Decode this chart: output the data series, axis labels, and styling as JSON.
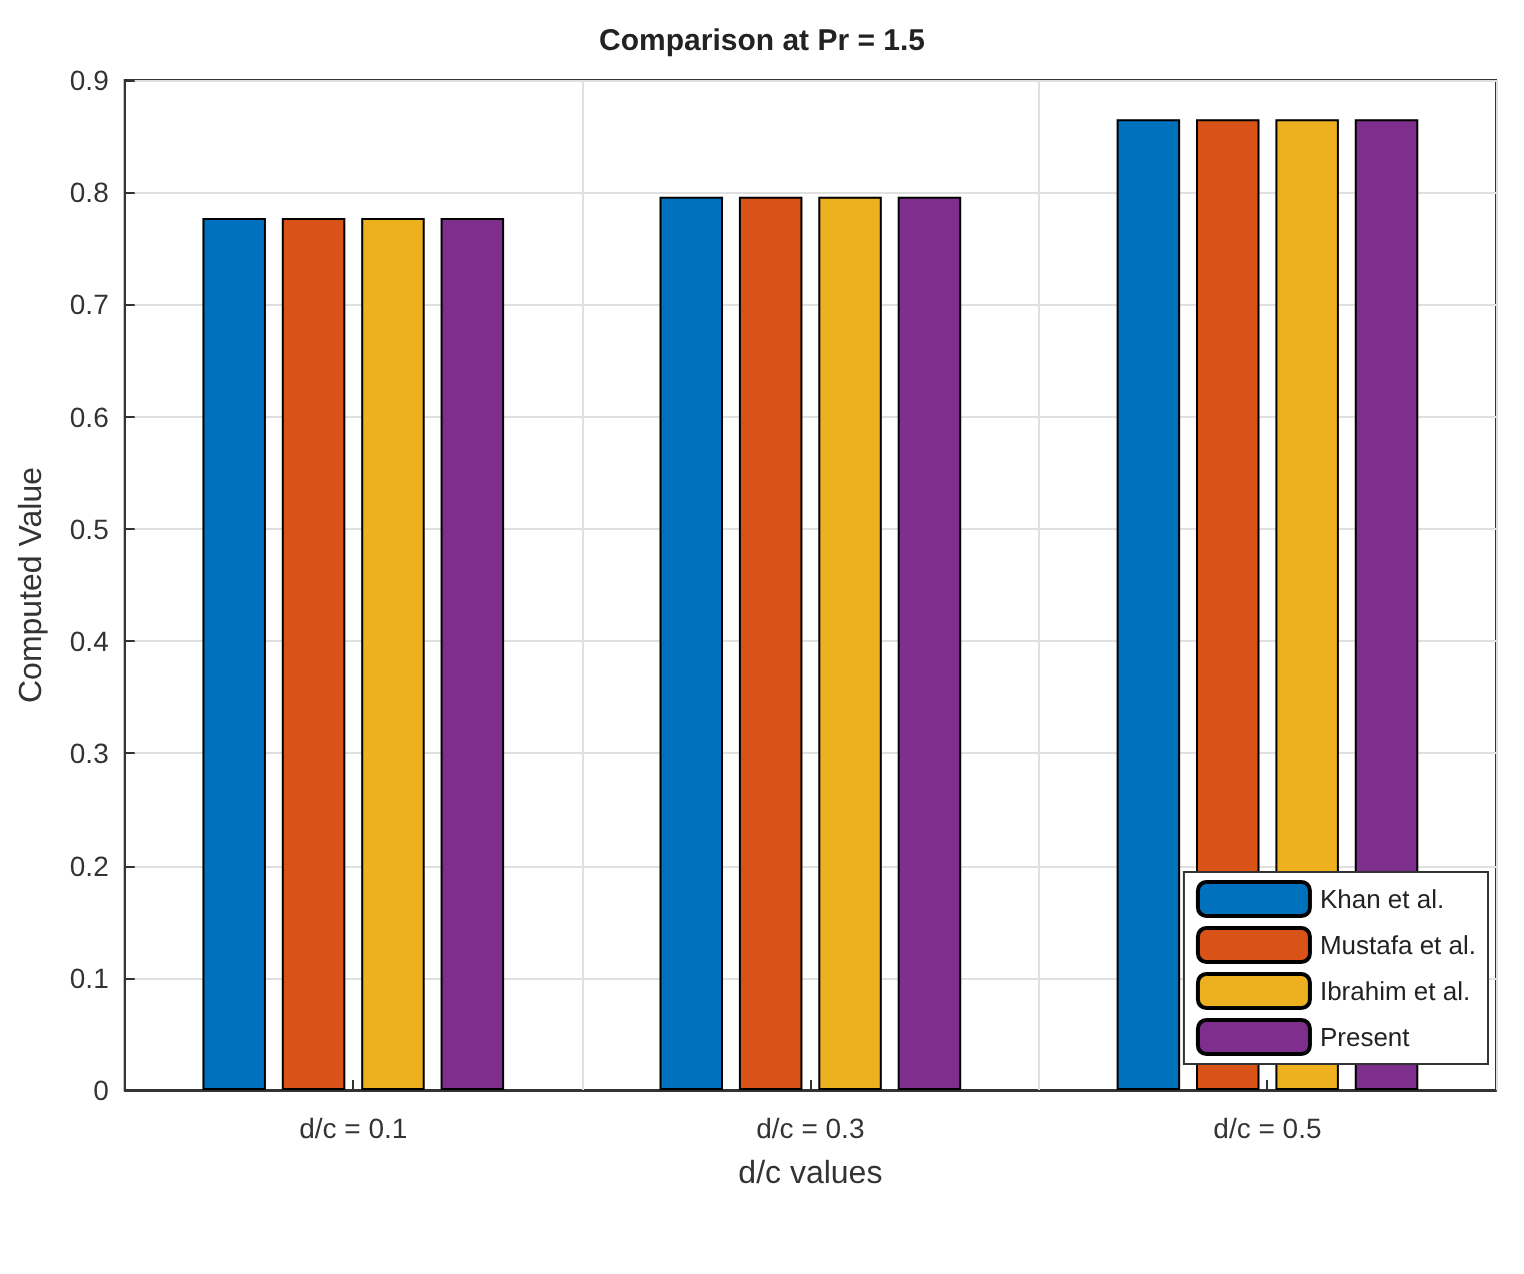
{
  "chart_data": {
    "type": "bar",
    "title": "Comparison at Pr = 1.5",
    "xlabel": "d/c values",
    "ylabel": "Computed Value",
    "categories": [
      "d/c = 0.1",
      "d/c = 0.3",
      "d/c = 0.5"
    ],
    "series": [
      {
        "name": "Khan et al.",
        "color": "#0072bd",
        "values": [
          0.777,
          0.796,
          0.865
        ]
      },
      {
        "name": "Mustafa et al.",
        "color": "#d95319",
        "values": [
          0.777,
          0.796,
          0.865
        ]
      },
      {
        "name": "Ibrahim et al.",
        "color": "#edb120",
        "values": [
          0.777,
          0.796,
          0.865
        ]
      },
      {
        "name": "Present",
        "color": "#7e2f8e",
        "values": [
          0.777,
          0.796,
          0.865
        ]
      }
    ],
    "ylim": [
      0,
      0.9
    ],
    "yticks": [
      0,
      0.1,
      0.2,
      0.3,
      0.4,
      0.5,
      0.6,
      0.7,
      0.8,
      0.9
    ],
    "grid": true,
    "legend": "bottom right"
  }
}
